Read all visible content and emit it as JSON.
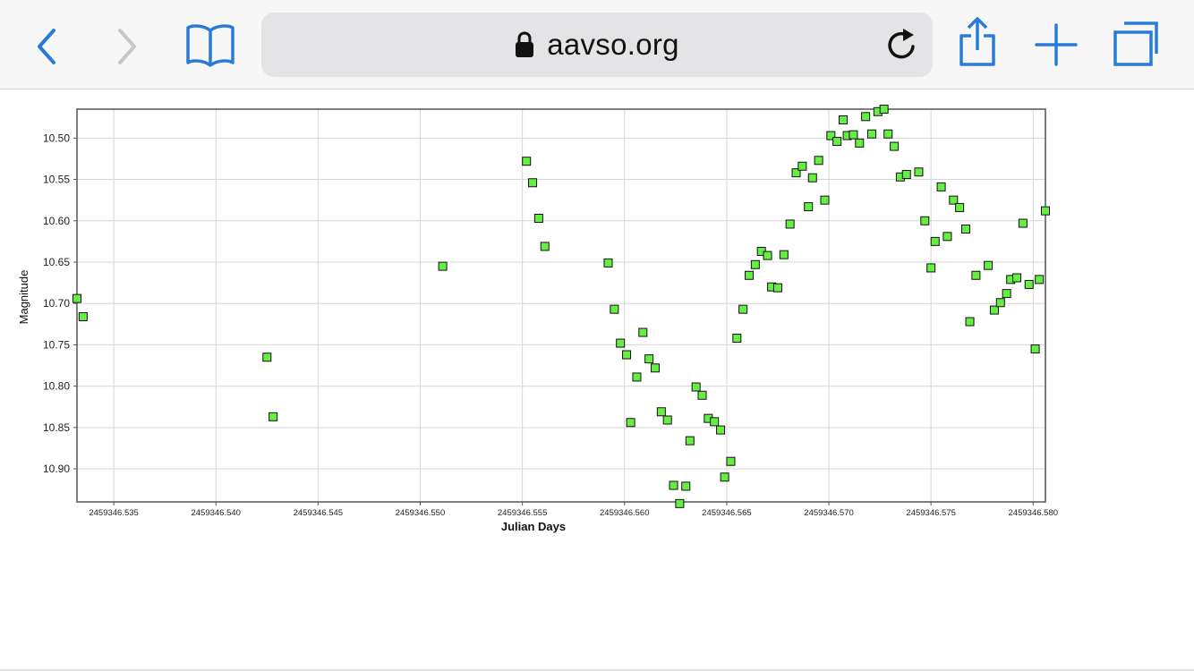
{
  "browser": {
    "url": "aavso.org",
    "accent_color": "#2a7bd8",
    "disabled_color": "#c8c8cc",
    "icons": [
      "back-icon",
      "forward-icon",
      "bookmarks-icon",
      "lock-icon",
      "reload-icon",
      "share-icon",
      "new-tab-icon",
      "tabs-icon"
    ]
  },
  "chart_data": {
    "type": "scatter",
    "title": "",
    "xlabel": "Julian Days",
    "ylabel": "Magnitude",
    "xlim": [
      2459346.5332,
      2459346.5806
    ],
    "ylim": [
      10.94,
      10.465
    ],
    "y_inverted": true,
    "grid": true,
    "legend": "none",
    "marker": "square",
    "marker_color": "#66ee44",
    "x_ticks": [
      2459346.535,
      2459346.54,
      2459346.545,
      2459346.55,
      2459346.555,
      2459346.56,
      2459346.565,
      2459346.57,
      2459346.575,
      2459346.58
    ],
    "x_tick_labels": [
      "2459346.535",
      "2459346.540",
      "2459346.545",
      "2459346.550",
      "2459346.555",
      "2459346.560",
      "2459346.565",
      "2459346.570",
      "2459346.575",
      "2459346.580"
    ],
    "y_ticks": [
      10.5,
      10.55,
      10.6,
      10.65,
      10.7,
      10.75,
      10.8,
      10.85,
      10.9
    ],
    "y_tick_labels": [
      "10.50",
      "10.55",
      "10.60",
      "10.65",
      "10.70",
      "10.75",
      "10.80",
      "10.85",
      "10.90"
    ],
    "points": [
      [
        2459346.5332,
        10.694
      ],
      [
        2459346.5335,
        10.716
      ],
      [
        2459346.5425,
        10.765
      ],
      [
        2459346.5428,
        10.837
      ],
      [
        2459346.5511,
        10.655
      ],
      [
        2459346.5552,
        10.528
      ],
      [
        2459346.5555,
        10.554
      ],
      [
        2459346.5558,
        10.597
      ],
      [
        2459346.5561,
        10.631
      ],
      [
        2459346.5592,
        10.651
      ],
      [
        2459346.5595,
        10.707
      ],
      [
        2459346.5598,
        10.748
      ],
      [
        2459346.5601,
        10.762
      ],
      [
        2459346.5603,
        10.844
      ],
      [
        2459346.5606,
        10.789
      ],
      [
        2459346.5609,
        10.735
      ],
      [
        2459346.5612,
        10.767
      ],
      [
        2459346.5615,
        10.778
      ],
      [
        2459346.5618,
        10.831
      ],
      [
        2459346.5621,
        10.841
      ],
      [
        2459346.5624,
        10.92
      ],
      [
        2459346.5627,
        10.942
      ],
      [
        2459346.563,
        10.921
      ],
      [
        2459346.5632,
        10.866
      ],
      [
        2459346.5635,
        10.801
      ],
      [
        2459346.5638,
        10.811
      ],
      [
        2459346.5641,
        10.839
      ],
      [
        2459346.5644,
        10.843
      ],
      [
        2459346.5647,
        10.853
      ],
      [
        2459346.5649,
        10.91
      ],
      [
        2459346.5652,
        10.891
      ],
      [
        2459346.5655,
        10.742
      ],
      [
        2459346.5658,
        10.707
      ],
      [
        2459346.5661,
        10.666
      ],
      [
        2459346.5664,
        10.653
      ],
      [
        2459346.5667,
        10.637
      ],
      [
        2459346.567,
        10.642
      ],
      [
        2459346.5672,
        10.68
      ],
      [
        2459346.5675,
        10.681
      ],
      [
        2459346.5678,
        10.641
      ],
      [
        2459346.5681,
        10.604
      ],
      [
        2459346.5684,
        10.542
      ],
      [
        2459346.5687,
        10.534
      ],
      [
        2459346.569,
        10.583
      ],
      [
        2459346.5692,
        10.548
      ],
      [
        2459346.5695,
        10.527
      ],
      [
        2459346.5698,
        10.575
      ],
      [
        2459346.5701,
        10.497
      ],
      [
        2459346.5704,
        10.504
      ],
      [
        2459346.5707,
        10.478
      ],
      [
        2459346.5709,
        10.497
      ],
      [
        2459346.5712,
        10.496
      ],
      [
        2459346.5715,
        10.506
      ],
      [
        2459346.5718,
        10.474
      ],
      [
        2459346.5721,
        10.495
      ],
      [
        2459346.5724,
        10.468
      ],
      [
        2459346.5727,
        10.465
      ],
      [
        2459346.5729,
        10.495
      ],
      [
        2459346.5732,
        10.51
      ],
      [
        2459346.5735,
        10.547
      ],
      [
        2459346.5738,
        10.544
      ],
      [
        2459346.5744,
        10.541
      ],
      [
        2459346.5747,
        10.6
      ],
      [
        2459346.575,
        10.657
      ],
      [
        2459346.5752,
        10.625
      ],
      [
        2459346.5755,
        10.559
      ],
      [
        2459346.5758,
        10.619
      ],
      [
        2459346.5761,
        10.575
      ],
      [
        2459346.5764,
        10.584
      ],
      [
        2459346.5767,
        10.61
      ],
      [
        2459346.5769,
        10.722
      ],
      [
        2459346.5772,
        10.666
      ],
      [
        2459346.5778,
        10.654
      ],
      [
        2459346.5781,
        10.708
      ],
      [
        2459346.5784,
        10.699
      ],
      [
        2459346.5787,
        10.688
      ],
      [
        2459346.5789,
        10.671
      ],
      [
        2459346.5792,
        10.669
      ],
      [
        2459346.5795,
        10.603
      ],
      [
        2459346.5798,
        10.677
      ],
      [
        2459346.5801,
        10.755
      ],
      [
        2459346.5803,
        10.671
      ],
      [
        2459346.5806,
        10.588
      ]
    ]
  }
}
